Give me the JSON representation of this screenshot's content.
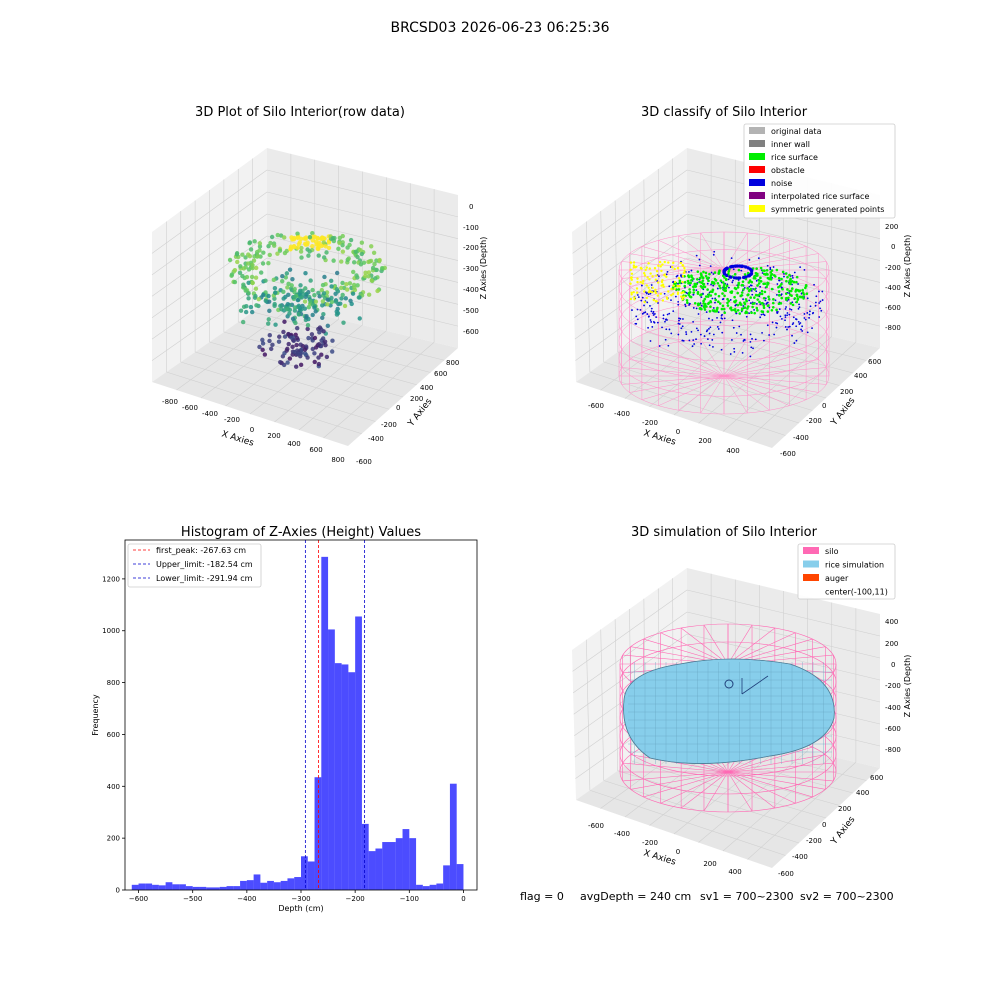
{
  "figure": {
    "suptitle": "BRCSD03 2026-06-23 06:25:36",
    "footer": {
      "flag": "flag = 0",
      "avg_depth": "avgDepth = 240 cm",
      "sv1": "sv1 = 700~2300",
      "sv2": "sv2 = 700~2300"
    }
  },
  "panels": {
    "raw": {
      "title": "3D Plot of Silo Interior(row data)",
      "xlabel": "X Axies",
      "ylabel": "Y Axies",
      "zlabel": "Z Axies (Depth)",
      "x_ticks": [
        "-800",
        "-600",
        "-400",
        "-200",
        "0",
        "200",
        "400",
        "600",
        "800"
      ],
      "y_ticks": [
        "-600",
        "-400",
        "-200",
        "0",
        "200",
        "400",
        "600",
        "800"
      ],
      "z_ticks": [
        "0",
        "-100",
        "-200",
        "-300",
        "-400",
        "-500",
        "-600"
      ]
    },
    "classify": {
      "title": "3D classify of Silo Interior",
      "xlabel": "X Axies",
      "ylabel": "Y Axies",
      "zlabel": "Z Axies (Depth)",
      "x_ticks": [
        "-600",
        "-400",
        "-200",
        "0",
        "200",
        "400"
      ],
      "y_ticks": [
        "-600",
        "-400",
        "-200",
        "0",
        "200",
        "400",
        "600"
      ],
      "z_ticks": [
        "200",
        "0",
        "-200",
        "-400",
        "-600",
        "-800"
      ],
      "legend": [
        {
          "label": "original data",
          "color": "#b3b3b3"
        },
        {
          "label": "inner wall",
          "color": "#808080"
        },
        {
          "label": "rice surface",
          "color": "#00ee00"
        },
        {
          "label": "obstacle",
          "color": "#ff0000"
        },
        {
          "label": "noise",
          "color": "#0000dd"
        },
        {
          "label": "interpolated rice surface",
          "color": "#800080"
        },
        {
          "label": "symmetric generated points",
          "color": "#ffff00"
        }
      ]
    },
    "simulation": {
      "title": "3D simulation of Silo Interior",
      "xlabel": "X Axies",
      "ylabel": "Y Axies",
      "zlabel": "Z Axies (Depth)",
      "x_ticks": [
        "-600",
        "-400",
        "-200",
        "0",
        "200",
        "400"
      ],
      "y_ticks": [
        "-600",
        "-400",
        "-200",
        "0",
        "200",
        "400",
        "600"
      ],
      "z_ticks": [
        "400",
        "200",
        "0",
        "-200",
        "-400",
        "-600",
        "-800"
      ],
      "legend": [
        {
          "label": "silo",
          "color": "#ff69b4"
        },
        {
          "label": "rice simulation",
          "color": "#87ceeb"
        },
        {
          "label": "auger",
          "color": "#ff4500"
        },
        {
          "label": "center(-100,11)",
          "color": ""
        }
      ]
    }
  },
  "chart_data": [
    {
      "type": "bar",
      "title": "Histogram of Z-Axies (Height) Values",
      "xlabel": "Depth (cm)",
      "ylabel": "Frequency",
      "xlim": [
        -625,
        25
      ],
      "ylim": [
        0,
        1350
      ],
      "x_ticks": [
        -600,
        -500,
        -400,
        -300,
        -200,
        -100,
        0
      ],
      "y_ticks": [
        0,
        200,
        400,
        600,
        800,
        1000,
        1200
      ],
      "bar_color": "#0000ff",
      "bin_width": 12.5,
      "bins_left": [
        -612.5,
        -600,
        -587.5,
        -575,
        -562.5,
        -550,
        -537.5,
        -525,
        -512.5,
        -500,
        -487.5,
        -475,
        -462.5,
        -450,
        -437.5,
        -425,
        -412.5,
        -400,
        -387.5,
        -375,
        -362.5,
        -350,
        -337.5,
        -325,
        -312.5,
        -300,
        -287.5,
        -275,
        -262.5,
        -250,
        -237.5,
        -225,
        -212.5,
        -200,
        -187.5,
        -175,
        -162.5,
        -150,
        -137.5,
        -125,
        -112.5,
        -100,
        -87.5,
        -75,
        -62.5,
        -50,
        -37.5,
        -25,
        -12.5
      ],
      "values": [
        20,
        25,
        25,
        20,
        18,
        30,
        22,
        22,
        15,
        12,
        12,
        10,
        10,
        12,
        15,
        15,
        35,
        38,
        60,
        28,
        35,
        30,
        35,
        45,
        50,
        130,
        110,
        435,
        1285,
        1005,
        875,
        870,
        840,
        1055,
        255,
        150,
        160,
        185,
        185,
        200,
        235,
        200,
        20,
        15,
        20,
        25,
        95,
        410,
        100
      ],
      "vlines": [
        {
          "label": "first_peak: -267.63 cm",
          "x": -267.63,
          "color": "#ff0000"
        },
        {
          "label": "Upper_limit: -182.54 cm",
          "x": -182.54,
          "color": "#0000cc"
        },
        {
          "label": "Lower_limit: -291.94 cm",
          "x": -291.94,
          "color": "#0000cc"
        }
      ],
      "legend_position": "top-left"
    }
  ]
}
